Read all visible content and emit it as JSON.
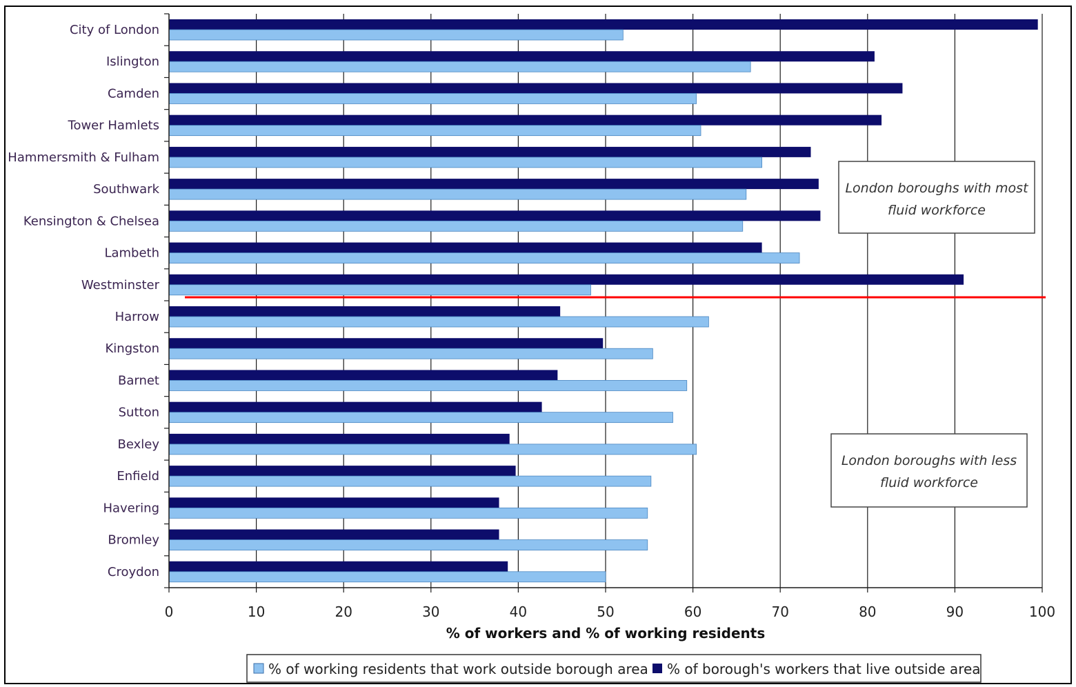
{
  "chart_data": {
    "type": "bar",
    "orientation": "horizontal",
    "categories": [
      "City of London",
      "Islington",
      "Camden",
      "Tower Hamlets",
      "Hammersmith & Fulham",
      "Southwark",
      "Kensington & Chelsea",
      "Lambeth",
      "Westminster",
      "Harrow",
      "Kingston",
      "Barnet",
      "Sutton",
      "Bexley",
      "Enfield",
      "Havering",
      "Bromley",
      "Croydon"
    ],
    "series": [
      {
        "name": "% of borough's workers that live outside area",
        "color": "#0d0d6b",
        "values": [
          99.5,
          80.8,
          84,
          81.6,
          73.5,
          74.4,
          74.6,
          67.9,
          91,
          44.8,
          49.7,
          44.5,
          42.7,
          39,
          39.7,
          37.8,
          37.8,
          38.8
        ]
      },
      {
        "name": "% of working residents that work outside borough area",
        "color": "#8ec2f0",
        "values": [
          52,
          66.6,
          60.4,
          60.9,
          67.9,
          66.1,
          65.7,
          72.2,
          48.3,
          61.8,
          55.4,
          59.3,
          57.7,
          60.4,
          55.2,
          54.8,
          54.8,
          50
        ]
      }
    ],
    "xlabel": "% of workers and % of working residents",
    "xlim": [
      0,
      100
    ],
    "xticks": [
      "0",
      "10",
      "20",
      "30",
      "40",
      "50",
      "60",
      "70",
      "80",
      "90",
      "100"
    ],
    "grid": "vertical",
    "legend_position": "bottom",
    "divider": {
      "after_category": "Westminster",
      "color": "#ff0000"
    },
    "annotations": [
      {
        "text_line1": "London boroughs with most",
        "text_line2": "fluid workforce"
      },
      {
        "text_line1": "London boroughs with less",
        "text_line2": "fluid workforce"
      }
    ]
  }
}
